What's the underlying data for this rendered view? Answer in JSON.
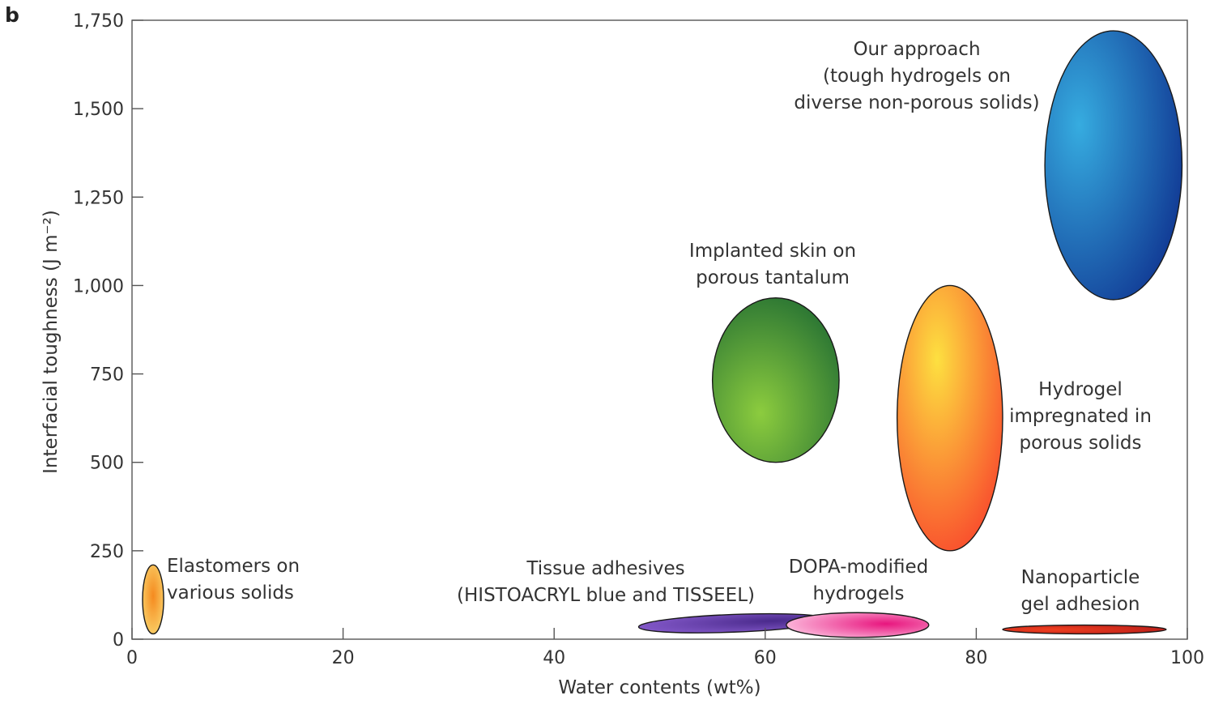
{
  "panel_label": "b",
  "chart_data": {
    "type": "scatter",
    "title": "",
    "xlabel": "Water contents (wt%)",
    "ylabel": "Interfacial toughness  (J m⁻²)",
    "xlim": [
      0,
      100
    ],
    "ylim": [
      0,
      1750
    ],
    "x_ticks": [
      0,
      20,
      40,
      60,
      80,
      100
    ],
    "x_tick_labels": [
      "0",
      "20",
      "40",
      "60",
      "80",
      "100"
    ],
    "y_ticks": [
      0,
      250,
      500,
      750,
      1000,
      1250,
      1500,
      1750
    ],
    "y_tick_labels": [
      "0",
      "250",
      "500",
      "750",
      "1,000",
      "1,250",
      "1,500",
      "1,750"
    ],
    "grid": false,
    "regions": [
      {
        "name": "Elastomers on various solids",
        "label_lines": [
          "Elastomers on",
          "various solids"
        ],
        "x_range": [
          1,
          3
        ],
        "y_range": [
          15,
          210
        ],
        "rotation": 0,
        "colors": [
          "#f58a1f",
          "#fbe27a"
        ]
      },
      {
        "name": "Tissue adhesives (HISTOACRYL blue and TISSEEL)",
        "label_lines": [
          "Tissue adhesives",
          "(HISTOACRYL blue and TISSEEL)"
        ],
        "x_range": [
          48,
          66
        ],
        "y_range": [
          20,
          70
        ],
        "rotation": -2.2,
        "colors": [
          "#4a2a8c",
          "#8a5ed0"
        ]
      },
      {
        "name": "DOPA-modified hydrogels",
        "label_lines": [
          "DOPA-modified",
          "hydrogels"
        ],
        "x_range": [
          62,
          75.5
        ],
        "y_range": [
          5,
          75
        ],
        "rotation": 0,
        "colors": [
          "#e8157e",
          "#fbb2d8"
        ]
      },
      {
        "name": "Nanoparticle gel adhesion",
        "label_lines": [
          "Nanoparticle",
          "gel adhesion"
        ],
        "x_range": [
          82.5,
          98
        ],
        "y_range": [
          15,
          40
        ],
        "rotation": 0,
        "colors": [
          "#f04020",
          "#b01818"
        ]
      },
      {
        "name": "Implanted skin on porous tantalum",
        "label_lines": [
          "Implanted skin on",
          "porous tantalum"
        ],
        "x_range": [
          55,
          67
        ],
        "y_range": [
          500,
          965
        ],
        "rotation": 0,
        "colors": [
          "#8ccc3e",
          "#1e6a32"
        ]
      },
      {
        "name": "Hydrogel impregnated in porous solids",
        "label_lines": [
          "Hydrogel",
          "impregnated in",
          "porous solids"
        ],
        "x_range": [
          72.5,
          82.5
        ],
        "y_range": [
          250,
          1000
        ],
        "rotation": 0,
        "colors": [
          "#fde040",
          "#f8352a"
        ]
      },
      {
        "name": "Our approach (tough hydrogels on diverse non-porous solids)",
        "label_lines": [
          "Our approach",
          "(tough hydrogels on",
          "diverse non-porous solids)"
        ],
        "x_range": [
          86.5,
          99.5
        ],
        "y_range": [
          960,
          1720
        ],
        "rotation": 0,
        "colors": [
          "#36ace0",
          "#0d2d8c"
        ]
      }
    ]
  }
}
